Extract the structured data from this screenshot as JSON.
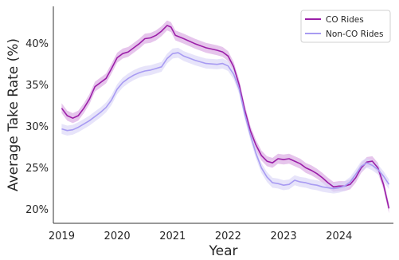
{
  "chart_data": {
    "type": "line",
    "xlabel": "Year",
    "ylabel": "Average Take Rate (%)",
    "xlim": [
      2018.85,
      2024.98
    ],
    "ylim": [
      18.3,
      44.5
    ],
    "x_ticks": [
      2019,
      2020,
      2021,
      2022,
      2023,
      2024
    ],
    "y_ticks": [
      20,
      25,
      30,
      35,
      40
    ],
    "y_tick_format": "{v}%",
    "grid": false,
    "legend_position": "top-right",
    "series": [
      {
        "name": "CO Rides",
        "color": "#9b1fa8",
        "band_color": "#d9a6e2",
        "band_halfwidth": 0.6,
        "x": [
          2019.0,
          2019.1,
          2019.2,
          2019.3,
          2019.4,
          2019.5,
          2019.6,
          2019.7,
          2019.8,
          2019.9,
          2020.0,
          2020.1,
          2020.2,
          2020.3,
          2020.4,
          2020.5,
          2020.6,
          2020.7,
          2020.8,
          2020.9,
          2020.97,
          2021.05,
          2021.2,
          2021.4,
          2021.6,
          2021.8,
          2021.9,
          2022.0,
          2022.1,
          2022.2,
          2022.3,
          2022.4,
          2022.5,
          2022.6,
          2022.7,
          2022.8,
          2022.9,
          2023.0,
          2023.1,
          2023.2,
          2023.3,
          2023.4,
          2023.5,
          2023.6,
          2023.7,
          2023.8,
          2023.9,
          2024.0,
          2024.1,
          2024.2,
          2024.3,
          2024.4,
          2024.5,
          2024.6,
          2024.7,
          2024.8,
          2024.9
        ],
        "y": [
          32.2,
          31.3,
          31.0,
          31.3,
          32.2,
          33.3,
          34.8,
          35.3,
          35.8,
          37.0,
          38.3,
          38.8,
          39.0,
          39.5,
          40.0,
          40.6,
          40.7,
          41.0,
          41.5,
          42.2,
          42.0,
          41.0,
          40.6,
          40.0,
          39.5,
          39.2,
          39.0,
          38.5,
          37.2,
          35.0,
          32.0,
          29.5,
          27.8,
          26.5,
          25.8,
          25.6,
          26.1,
          26.0,
          26.1,
          25.8,
          25.5,
          25.0,
          24.7,
          24.3,
          23.8,
          23.2,
          22.7,
          22.8,
          22.8,
          23.0,
          23.8,
          25.0,
          25.7,
          25.8,
          25.0,
          23.0,
          20.1
        ]
      },
      {
        "name": "Non-CO Rides",
        "color": "#a89bf2",
        "band_color": "#dad6f7",
        "band_halfwidth": 0.6,
        "x": [
          2019.0,
          2019.1,
          2019.2,
          2019.3,
          2019.4,
          2019.5,
          2019.6,
          2019.7,
          2019.8,
          2019.9,
          2020.0,
          2020.1,
          2020.2,
          2020.3,
          2020.4,
          2020.5,
          2020.6,
          2020.7,
          2020.8,
          2020.9,
          2021.0,
          2021.1,
          2021.2,
          2021.4,
          2021.6,
          2021.8,
          2021.9,
          2022.0,
          2022.1,
          2022.2,
          2022.3,
          2022.4,
          2022.5,
          2022.6,
          2022.7,
          2022.8,
          2022.9,
          2023.0,
          2023.1,
          2023.2,
          2023.3,
          2023.4,
          2023.5,
          2023.6,
          2023.7,
          2023.8,
          2023.9,
          2024.0,
          2024.1,
          2024.2,
          2024.3,
          2024.4,
          2024.5,
          2024.6,
          2024.7,
          2024.8,
          2024.9
        ],
        "y": [
          29.7,
          29.5,
          29.6,
          29.9,
          30.3,
          30.7,
          31.2,
          31.7,
          32.3,
          33.2,
          34.5,
          35.3,
          35.8,
          36.2,
          36.5,
          36.7,
          36.8,
          37.0,
          37.2,
          38.2,
          38.8,
          38.9,
          38.5,
          38.0,
          37.6,
          37.5,
          37.6,
          37.3,
          36.3,
          34.5,
          31.5,
          29.0,
          26.8,
          25.0,
          23.9,
          23.2,
          23.1,
          22.9,
          23.0,
          23.5,
          23.3,
          23.2,
          23.0,
          22.9,
          22.7,
          22.6,
          22.5,
          22.6,
          22.8,
          23.3,
          24.2,
          25.2,
          25.6,
          25.3,
          24.8,
          24.0,
          23.0
        ]
      }
    ]
  }
}
